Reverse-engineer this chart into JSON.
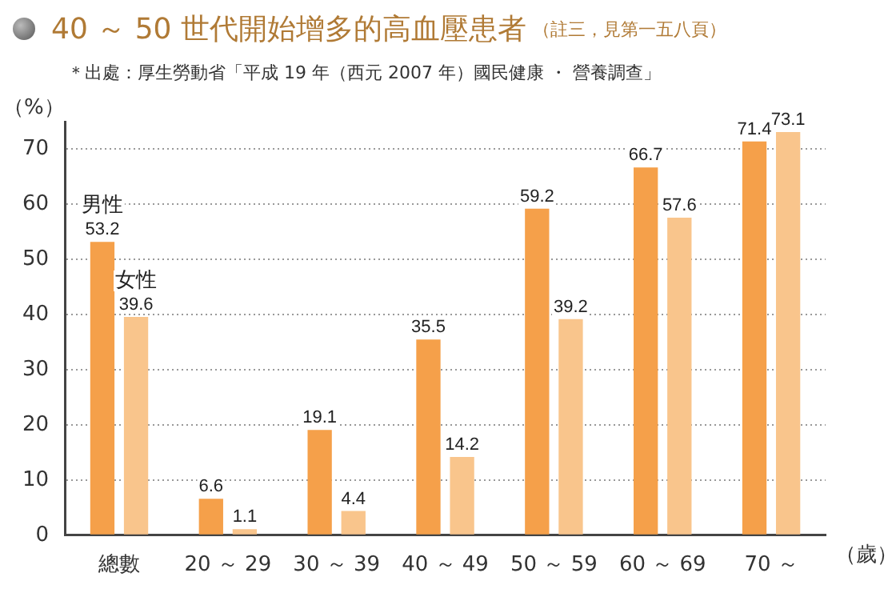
{
  "chart_data": {
    "type": "bar",
    "title": "40 ～ 50 世代開始增多的高血壓患者",
    "subtitle": "＊出處：厚生勞動省「平成 19 年（西元 2007 年）國民健康 ・ 營養調查」",
    "annotations": [
      "（註三，見第一五八頁）"
    ],
    "ylabel": "（%）",
    "xlabel": "（歲）",
    "categories": [
      "總數",
      "20 ～ 29",
      "30 ～ 39",
      "40 ～ 49",
      "50 ～ 59",
      "60 ～ 69",
      "70 ～"
    ],
    "series": [
      {
        "name": "男性",
        "color": "#f5a04a",
        "values": [
          53.2,
          6.6,
          19.1,
          35.5,
          59.2,
          66.7,
          71.4
        ]
      },
      {
        "name": "女性",
        "color": "#f9c58c",
        "values": [
          39.6,
          1.1,
          4.4,
          14.2,
          39.2,
          57.6,
          73.1
        ]
      }
    ],
    "ylim": [
      0,
      75
    ],
    "yticks": [
      0,
      10,
      20,
      30,
      40,
      50,
      60,
      70
    ],
    "grid": "y",
    "legend": false,
    "data_labels": true
  }
}
